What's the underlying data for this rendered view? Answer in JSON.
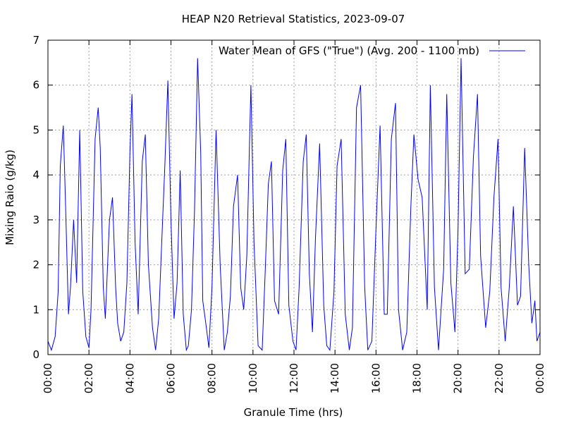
{
  "chart_data": {
    "type": "line",
    "title": "HEAP N20 Retrieval Statistics, 2023-09-07",
    "xlabel": "Granule Time (hrs)",
    "ylabel": "Mixing Raio (g/kg)",
    "xlim": [
      0,
      24
    ],
    "ylim": [
      0,
      7
    ],
    "x_unit": "hours",
    "x_ticks": [
      0,
      2,
      4,
      6,
      8,
      10,
      12,
      14,
      16,
      18,
      20,
      22,
      24
    ],
    "x_tick_labels": [
      "00:00",
      "02:00",
      "04:00",
      "06:00",
      "08:00",
      "10:00",
      "12:00",
      "14:00",
      "16:00",
      "18:00",
      "20:00",
      "22:00",
      "00:00"
    ],
    "y_ticks": [
      0,
      1,
      2,
      3,
      4,
      5,
      6,
      7
    ],
    "y_tick_labels": [
      "0",
      "1",
      "2",
      "3",
      "4",
      "5",
      "6",
      "7"
    ],
    "grid": true,
    "legend_position": "top-right",
    "series": [
      {
        "name": "Water Mean of GFS (\"True\") (Avg. 200 - 1100 mb)",
        "color": "#0000ff",
        "x": [
          0.0,
          0.17,
          0.35,
          0.5,
          0.6,
          0.75,
          0.85,
          1.0,
          1.1,
          1.25,
          1.4,
          1.55,
          1.7,
          1.85,
          2.0,
          2.1,
          2.3,
          2.45,
          2.55,
          2.7,
          2.8,
          3.0,
          3.15,
          3.3,
          3.4,
          3.55,
          3.7,
          3.85,
          4.0,
          4.1,
          4.25,
          4.4,
          4.6,
          4.75,
          4.9,
          5.1,
          5.25,
          5.4,
          5.55,
          5.7,
          5.85,
          6.0,
          6.15,
          6.3,
          6.45,
          6.6,
          6.75,
          6.85,
          7.0,
          7.15,
          7.3,
          7.45,
          7.55,
          7.7,
          7.85,
          8.0,
          8.2,
          8.4,
          8.6,
          8.75,
          8.9,
          9.05,
          9.25,
          9.4,
          9.55,
          9.7,
          9.9,
          10.05,
          10.25,
          10.45,
          10.6,
          10.75,
          10.9,
          11.05,
          11.25,
          11.45,
          11.6,
          11.75,
          11.95,
          12.1,
          12.25,
          12.45,
          12.6,
          12.75,
          12.9,
          13.05,
          13.25,
          13.45,
          13.6,
          13.75,
          13.95,
          14.1,
          14.3,
          14.5,
          14.7,
          14.85,
          15.05,
          15.25,
          15.45,
          15.6,
          15.8,
          16.0,
          16.2,
          16.4,
          16.55,
          16.75,
          16.95,
          17.1,
          17.3,
          17.5,
          17.7,
          17.85,
          18.05,
          18.25,
          18.5,
          18.65,
          18.85,
          19.05,
          19.3,
          19.45,
          19.65,
          19.85,
          20.0,
          20.15,
          20.35,
          20.55,
          20.75,
          20.95,
          21.1,
          21.35,
          21.55,
          21.75,
          21.95,
          22.1,
          22.3,
          22.5,
          22.7,
          22.9,
          23.05,
          23.25,
          23.45,
          23.6,
          23.75,
          23.85,
          24.0
        ],
        "values": [
          0.3,
          0.1,
          0.4,
          1.4,
          4.2,
          5.1,
          3.5,
          0.9,
          1.5,
          3.0,
          1.6,
          5.0,
          1.4,
          0.4,
          0.15,
          1.0,
          4.8,
          5.5,
          4.6,
          1.5,
          0.8,
          3.0,
          3.5,
          1.5,
          0.7,
          0.3,
          0.5,
          1.6,
          4.5,
          5.8,
          2.5,
          0.9,
          4.3,
          4.9,
          2.0,
          0.6,
          0.1,
          0.8,
          2.5,
          4.2,
          6.1,
          3.0,
          0.8,
          1.6,
          4.1,
          0.9,
          0.1,
          0.2,
          1.0,
          3.2,
          6.6,
          4.5,
          1.2,
          0.7,
          0.15,
          1.5,
          5.0,
          2.0,
          0.1,
          0.5,
          1.3,
          3.3,
          4.0,
          1.5,
          1.0,
          2.2,
          6.0,
          2.5,
          0.2,
          0.1,
          1.9,
          3.8,
          4.3,
          1.2,
          0.9,
          4.1,
          4.8,
          1.1,
          0.3,
          0.1,
          1.5,
          4.3,
          4.9,
          1.8,
          0.5,
          2.6,
          4.7,
          1.1,
          0.2,
          0.1,
          1.4,
          4.2,
          4.8,
          0.9,
          0.1,
          0.6,
          5.5,
          6.0,
          1.5,
          0.1,
          0.3,
          2.8,
          5.1,
          0.9,
          0.9,
          4.8,
          5.6,
          1.0,
          0.1,
          0.5,
          3.3,
          4.9,
          3.9,
          3.5,
          1.0,
          6.0,
          1.5,
          0.1,
          1.9,
          5.8,
          1.6,
          0.5,
          2.8,
          6.6,
          1.8,
          1.9,
          4.4,
          5.8,
          2.2,
          0.6,
          1.4,
          3.5,
          4.8,
          1.5,
          0.3,
          1.5,
          3.3,
          1.1,
          1.3,
          4.6,
          2.0,
          0.7,
          1.2,
          0.3,
          0.5
        ]
      }
    ]
  }
}
